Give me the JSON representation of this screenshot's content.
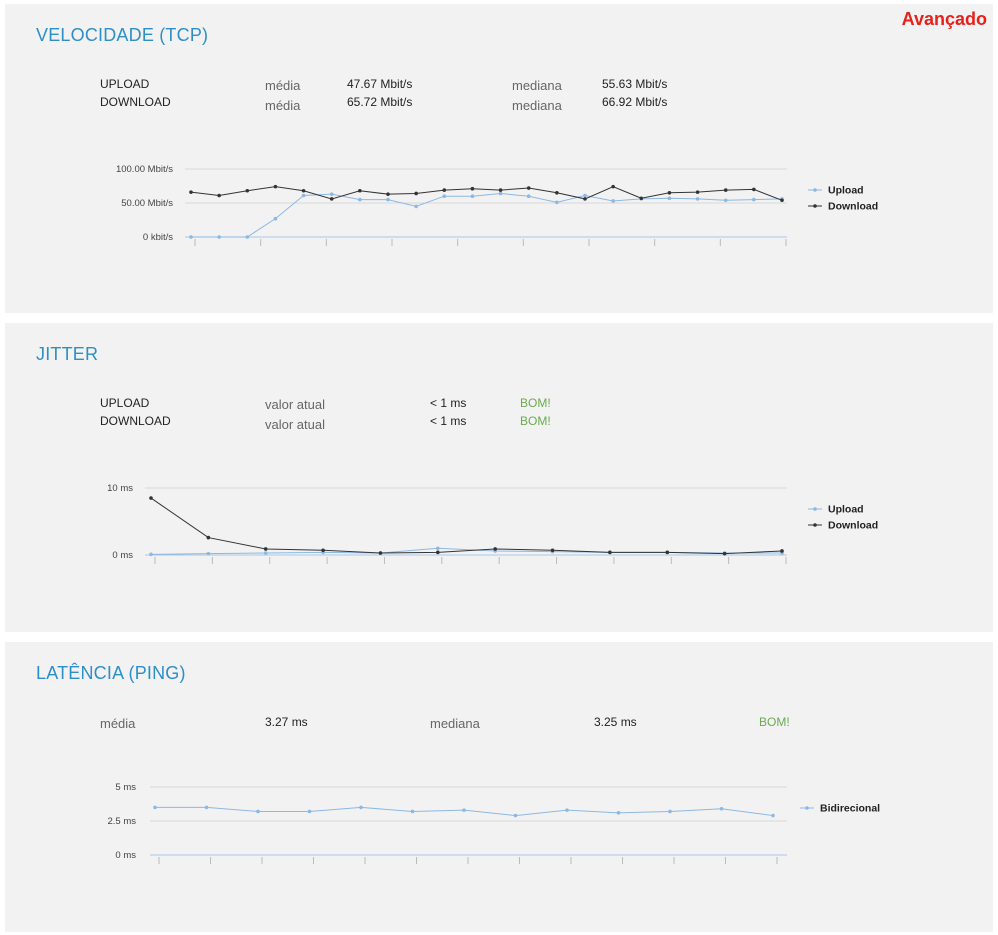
{
  "advanced_label": "Avançado",
  "speed": {
    "title": "VELOCIDADE (TCP)",
    "rows": [
      {
        "label": "UPLOAD",
        "mean_label": "média",
        "mean": "47.67 Mbit/s",
        "median_label": "mediana",
        "median": "55.63 Mbit/s"
      },
      {
        "label": "DOWNLOAD",
        "mean_label": "média",
        "mean": "65.72 Mbit/s",
        "median_label": "mediana",
        "median": "66.92 Mbit/s"
      }
    ]
  },
  "jitter": {
    "title": "JITTER",
    "rows": [
      {
        "label": "UPLOAD",
        "current_label": "valor atual",
        "current": "< 1 ms",
        "status": "BOM!"
      },
      {
        "label": "DOWNLOAD",
        "current_label": "valor atual",
        "current": "< 1 ms",
        "status": "BOM!"
      }
    ]
  },
  "latency": {
    "title": "LATÊNCIA (PING)",
    "mean_label": "média",
    "mean": "3.27 ms",
    "median_label": "mediana",
    "median": "3.25 ms",
    "status": "BOM!"
  },
  "colors": {
    "upload": "#8cb8e4",
    "download": "#333333",
    "bidirectional": "#8cb8e4",
    "grid": "#d8d8d8",
    "title": "#2e8fc7",
    "good": "#6aaa50",
    "advanced": "#e8201a"
  },
  "chart_data": [
    {
      "type": "line",
      "title": "",
      "ylabel": "",
      "ylim": [
        0,
        100
      ],
      "y_ticks": [
        "0 kbit/s",
        "50.00 Mbit/s",
        "100.00 Mbit/s"
      ],
      "y_tick_values": [
        0,
        50,
        100
      ],
      "legend": "right",
      "series": [
        {
          "name": "Upload",
          "values": [
            0,
            0,
            0,
            27,
            61,
            63,
            55,
            55,
            45,
            60,
            60,
            64,
            60,
            51,
            61,
            53,
            56,
            57,
            56,
            54,
            55,
            56
          ]
        },
        {
          "name": "Download",
          "values": [
            66,
            61,
            68,
            74,
            68,
            56,
            68,
            63,
            64,
            69,
            71,
            69,
            72,
            65,
            56,
            74,
            57,
            65,
            66,
            69,
            70,
            54
          ]
        }
      ]
    },
    {
      "type": "line",
      "title": "",
      "ylabel": "",
      "ylim": [
        0,
        10
      ],
      "y_ticks": [
        "0 ms",
        "10 ms"
      ],
      "y_tick_values": [
        0,
        10
      ],
      "legend": "right",
      "series": [
        {
          "name": "Upload",
          "values": [
            0.1,
            0.2,
            0.3,
            0.4,
            0.3,
            1.0,
            0.6,
            0.5,
            0.4,
            0.4,
            0.3,
            0.3
          ]
        },
        {
          "name": "Download",
          "values": [
            8.5,
            2.6,
            0.9,
            0.7,
            0.3,
            0.4,
            0.9,
            0.7,
            0.4,
            0.4,
            0.2,
            0.6
          ]
        }
      ]
    },
    {
      "type": "line",
      "title": "",
      "ylabel": "",
      "ylim": [
        0,
        5
      ],
      "y_ticks": [
        "0 ms",
        "2.5 ms",
        "5 ms"
      ],
      "y_tick_values": [
        0,
        2.5,
        5
      ],
      "legend": "right",
      "series": [
        {
          "name": "Bidirecional",
          "values": [
            3.5,
            3.5,
            3.2,
            3.2,
            3.5,
            3.2,
            3.3,
            2.9,
            3.3,
            3.1,
            3.2,
            3.4,
            2.9
          ]
        }
      ]
    }
  ]
}
